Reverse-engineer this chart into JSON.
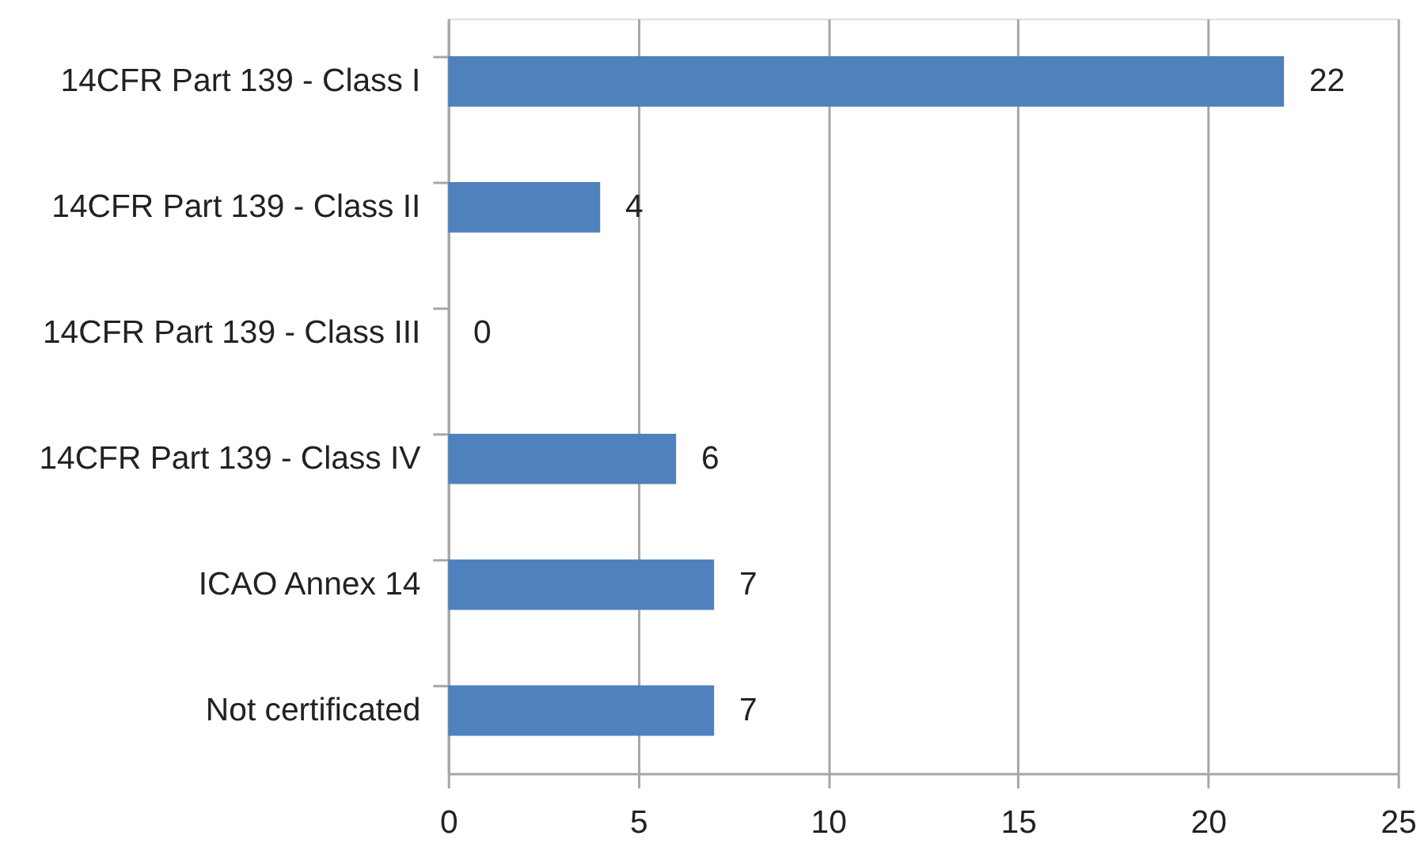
{
  "chart_data": {
    "type": "bar",
    "orientation": "horizontal",
    "categories": [
      "14CFR Part 139 - Class I",
      "14CFR Part 139 - Class II",
      "14CFR Part 139 - Class III",
      "14CFR Part 139 - Class IV",
      "ICAO Annex 14",
      "Not certificated"
    ],
    "values": [
      22,
      4,
      0,
      6,
      7,
      7
    ],
    "color": "#4f81bd",
    "xlim": [
      0,
      25
    ],
    "xticks": [
      0,
      5,
      10,
      15,
      20,
      25
    ],
    "grid": "x",
    "data_labels": true
  }
}
